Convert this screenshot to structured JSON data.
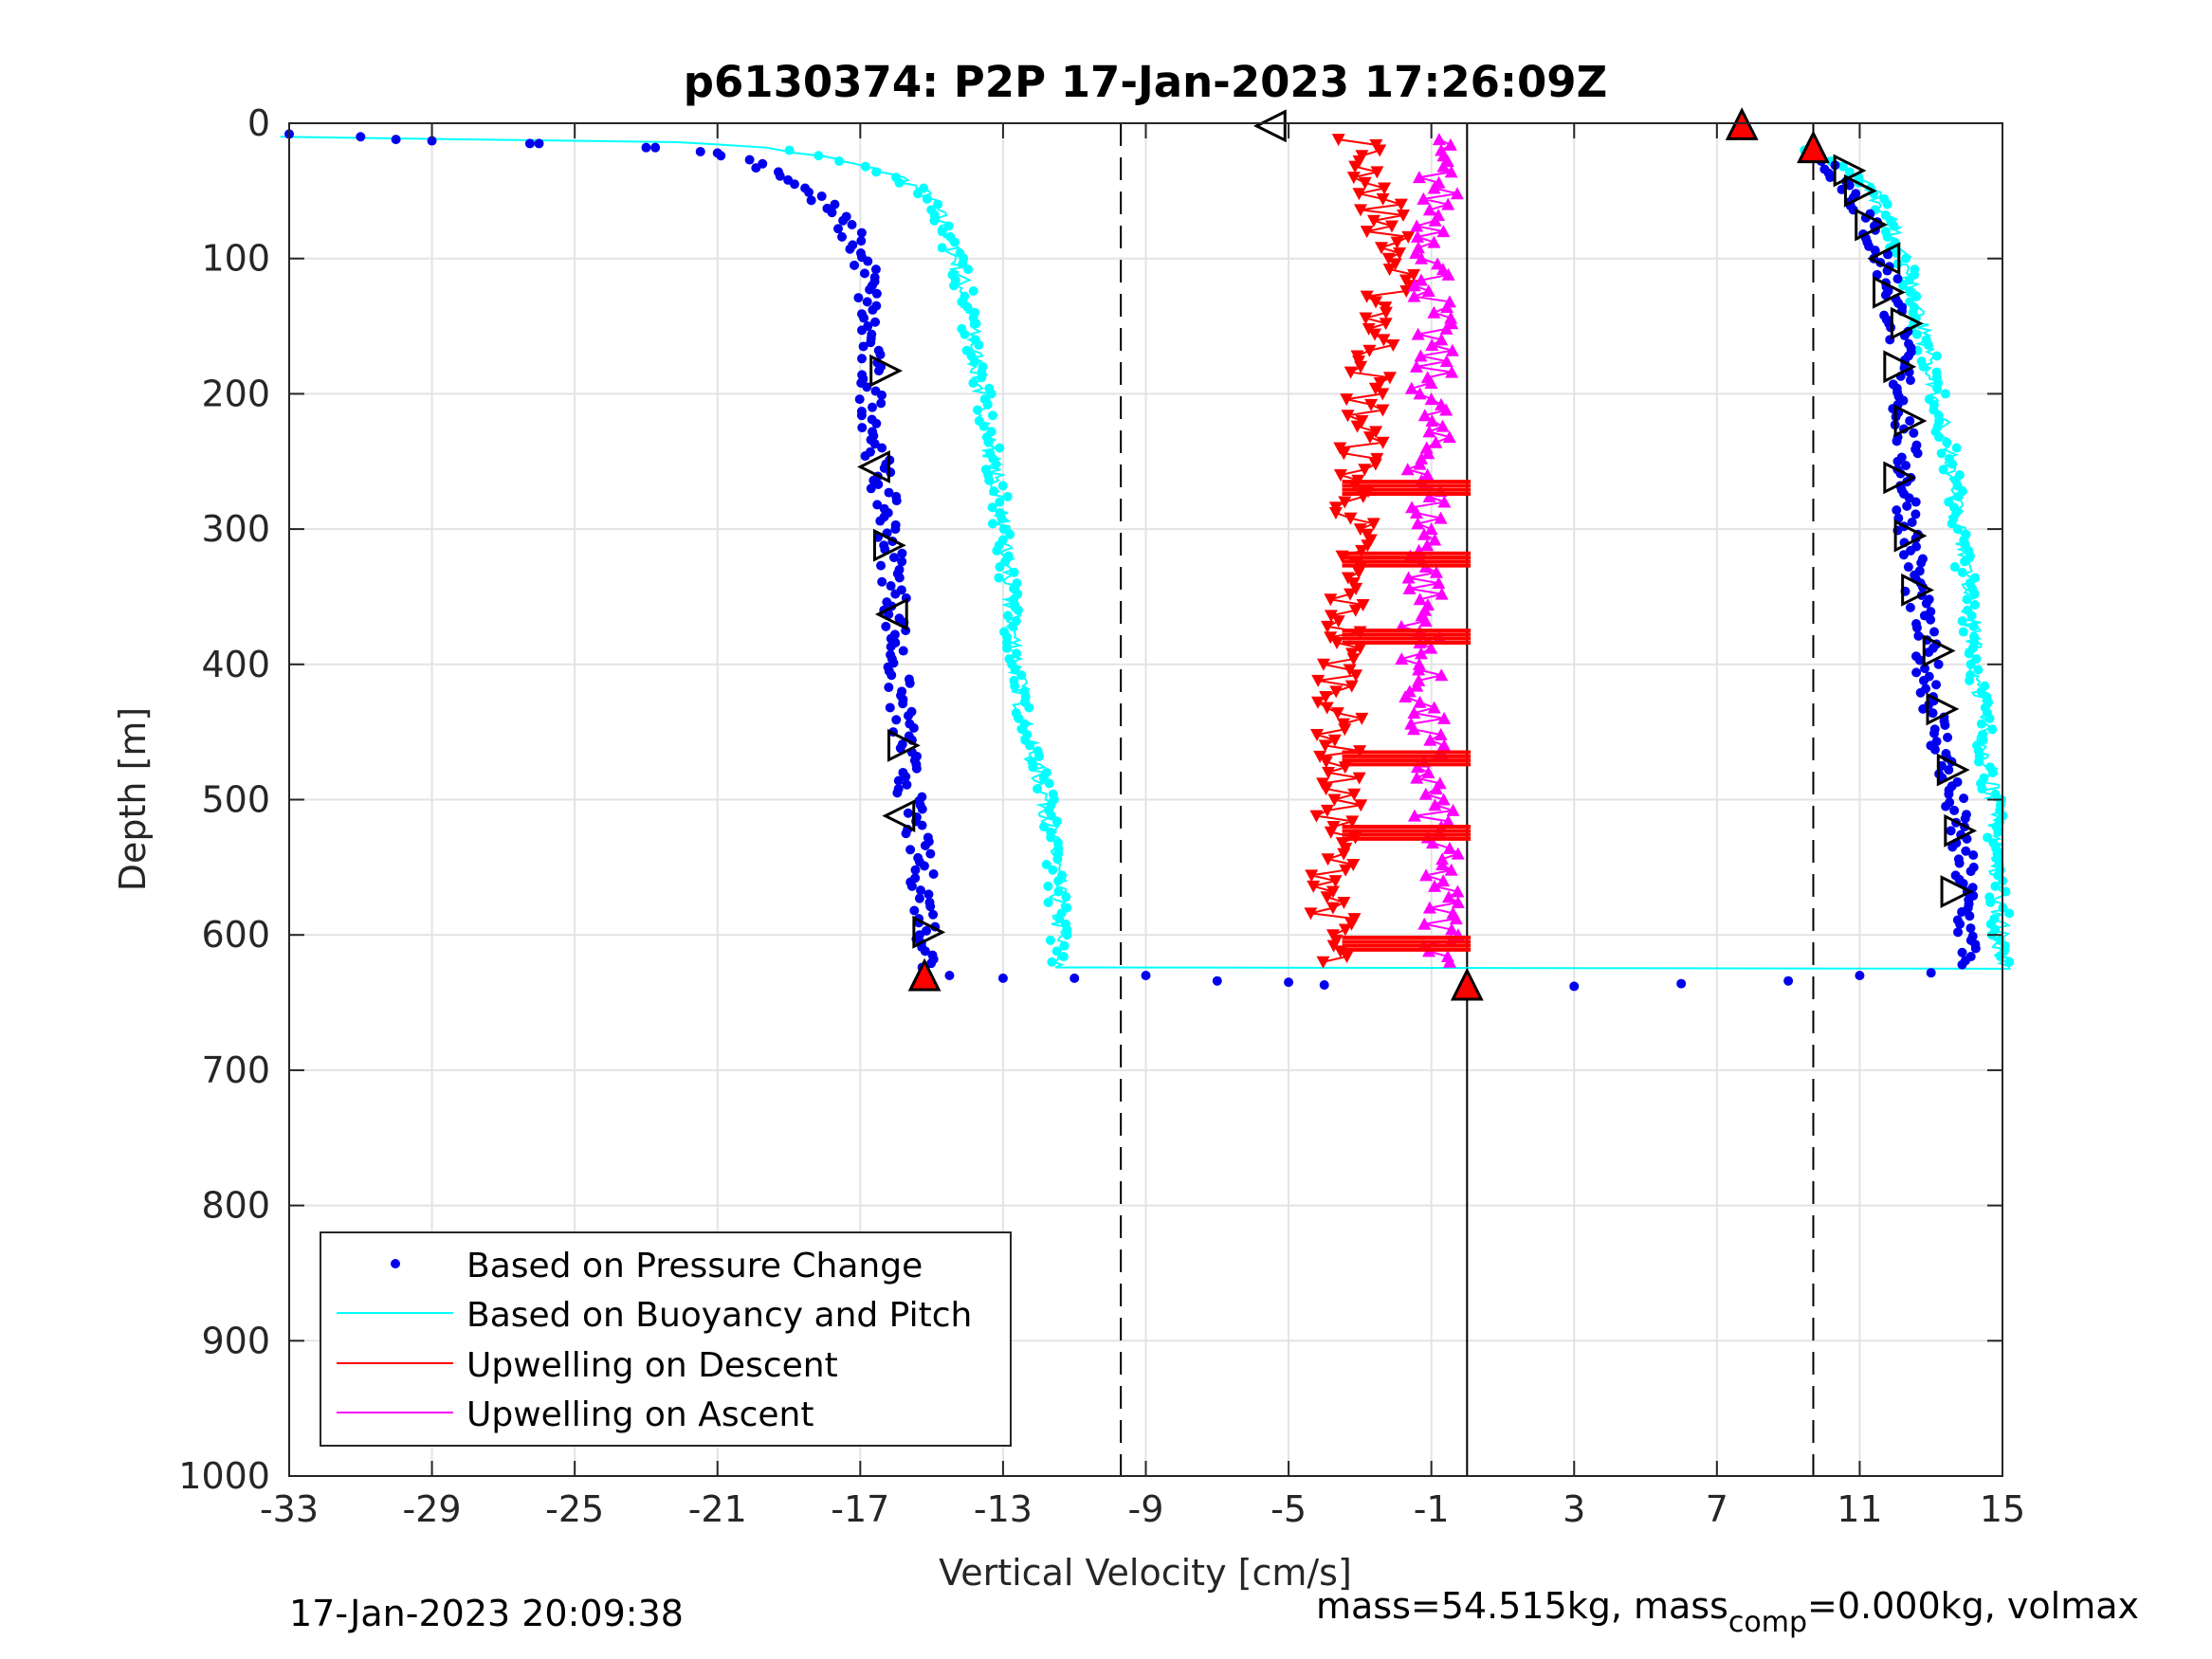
{
  "chart_data": {
    "type": "scatter",
    "title": "p6130374: P2P 17-Jan-2023 17:26:09Z",
    "xlabel": "Vertical Velocity [cm/s]",
    "ylabel": "Depth [m]",
    "xlim": [
      -33,
      15
    ],
    "ylim": [
      0,
      1000
    ],
    "y_reversed": true,
    "grid": true,
    "xticks": [
      -33,
      -29,
      -25,
      -21,
      -17,
      -13,
      -9,
      -5,
      -1,
      3,
      7,
      11,
      15
    ],
    "xtick_labels": [
      "-33",
      "-29",
      "-25",
      "-21",
      "-17",
      "-13",
      "-9",
      "-5",
      "-1",
      "3",
      "7",
      "11",
      "15"
    ],
    "yticks": [
      0,
      100,
      200,
      300,
      400,
      500,
      600,
      700,
      800,
      900,
      1000
    ],
    "ytick_labels": [
      "0",
      "100",
      "200",
      "300",
      "400",
      "500",
      "600",
      "700",
      "800",
      "900",
      "1000"
    ],
    "reference_lines": [
      {
        "x": -9.7,
        "style": "dashed"
      },
      {
        "x": 9.7,
        "style": "dashed"
      },
      {
        "x": 0,
        "style": "solid"
      }
    ],
    "legend": {
      "position": "bottom-left",
      "entries": [
        {
          "label": "Based on Pressure Change",
          "color": "#0000ee",
          "marker": "dot"
        },
        {
          "label": "Based on Buoyancy and Pitch",
          "color": "#00ffff",
          "marker": "line"
        },
        {
          "label": "Upwelling on Descent",
          "color": "#ff0000",
          "marker": "line"
        },
        {
          "label": "Upwelling on Ascent",
          "color": "#ff00ff",
          "marker": "line"
        }
      ]
    },
    "series": [
      {
        "key": "pressure_descent",
        "color": "#0000ee",
        "x": [
          -33,
          -31,
          -29,
          -26,
          -23,
          -21,
          -20,
          -19,
          -18,
          -17.3,
          -16.8,
          -16.8,
          -16.7,
          -16.5,
          -16.2,
          -16.0,
          -16.0,
          -15.8,
          -15.6,
          -15.3,
          -15.1,
          -15.1
        ],
        "y": [
          8,
          10,
          13,
          15,
          18,
          22,
          28,
          40,
          60,
          80,
          110,
          150,
          200,
          250,
          300,
          350,
          400,
          450,
          500,
          550,
          600,
          625
        ]
      },
      {
        "key": "pressure_ascent",
        "color": "#0000ee",
        "x": [
          10.0,
          10.5,
          11.0,
          11.3,
          11.6,
          11.9,
          12.1,
          12.2,
          12.3,
          12.4,
          12.6,
          12.9,
          13.2,
          13.6,
          13.9,
          14.0,
          14.1
        ],
        "y": [
          25,
          40,
          60,
          80,
          100,
          120,
          160,
          200,
          250,
          300,
          350,
          400,
          450,
          500,
          550,
          600,
          620
        ]
      },
      {
        "key": "buoyancy_descent",
        "color": "#00ffff",
        "x": [
          -33,
          -28,
          -24,
          -22,
          -20,
          -18,
          -16,
          -15,
          -14.6,
          -14.2,
          -13.9,
          -13.6,
          -13.3,
          -13.0,
          -12.8,
          -12.6,
          -12.4,
          -11.8,
          -11.5,
          -11.4
        ],
        "y": [
          10,
          12,
          13,
          14,
          17,
          25,
          38,
          55,
          80,
          110,
          150,
          200,
          250,
          300,
          350,
          400,
          450,
          500,
          550,
          625
        ]
      },
      {
        "key": "buoyancy_ascent",
        "color": "#00ffff",
        "x": [
          9.5,
          10.5,
          11.3,
          11.8,
          12.2,
          12.6,
          13.0,
          13.4,
          13.8,
          14.2,
          14.5,
          14.8,
          15.0
        ],
        "y": [
          20,
          30,
          45,
          70,
          100,
          140,
          180,
          230,
          300,
          380,
          450,
          520,
          620
        ]
      },
      {
        "key": "upwelling_descent",
        "color": "#ff0000",
        "x": [
          -3.0,
          -2.5,
          -2.0,
          -2.4,
          -2.8,
          -3.0,
          -3.2,
          -3.4,
          -3.5,
          -3.6,
          -3.6,
          -3.7,
          -3.8
        ],
        "y": [
          15,
          50,
          100,
          150,
          200,
          250,
          300,
          350,
          400,
          450,
          500,
          550,
          620
        ]
      },
      {
        "key": "upwelling_ascent",
        "color": "#ff00ff",
        "x": [
          -1.0,
          -0.8,
          -0.9,
          -1.0,
          -1.0,
          -1.1,
          -1.1,
          -1.2,
          -1.3,
          -1.2,
          -1.0,
          -0.8,
          -0.6
        ],
        "y": [
          15,
          50,
          100,
          150,
          200,
          250,
          300,
          350,
          400,
          450,
          500,
          550,
          620
        ]
      }
    ],
    "bottom_turn_points": {
      "color": "#0000ee",
      "x": [
        -14.5,
        -13,
        -11,
        -9,
        -7,
        -5,
        -4,
        0,
        3,
        6,
        9,
        11,
        13
      ],
      "y": [
        630,
        632,
        632,
        630,
        634,
        635,
        637,
        638,
        638,
        636,
        634,
        630,
        628
      ]
    },
    "triangle_markers": [
      {
        "x": -5.5,
        "y": 2,
        "dir": "left"
      },
      {
        "x": 7.7,
        "y": 1,
        "dir": "up",
        "fill": "#ff0000"
      },
      {
        "x": 9.7,
        "y": 18,
        "dir": "up",
        "fill": "#ff0000"
      },
      {
        "x": -15.2,
        "y": 630,
        "dir": "up",
        "fill": "#ff0000"
      },
      {
        "x": 0,
        "y": 637,
        "dir": "up",
        "fill": "#ff0000"
      },
      {
        "x": -16.3,
        "y": 183,
        "dir": "right"
      },
      {
        "x": -16.6,
        "y": 254,
        "dir": "left"
      },
      {
        "x": -16.2,
        "y": 312,
        "dir": "right"
      },
      {
        "x": -16.1,
        "y": 363,
        "dir": "left"
      },
      {
        "x": -15.8,
        "y": 460,
        "dir": "right"
      },
      {
        "x": -15.9,
        "y": 512,
        "dir": "left"
      },
      {
        "x": -15.1,
        "y": 598,
        "dir": "right"
      },
      {
        "x": 10.7,
        "y": 35,
        "dir": "right"
      },
      {
        "x": 11.0,
        "y": 50,
        "dir": "right"
      },
      {
        "x": 11.3,
        "y": 75,
        "dir": "right"
      },
      {
        "x": 11.7,
        "y": 100,
        "dir": "left"
      },
      {
        "x": 11.8,
        "y": 125,
        "dir": "right"
      },
      {
        "x": 12.3,
        "y": 148,
        "dir": "right"
      },
      {
        "x": 12.1,
        "y": 180,
        "dir": "right"
      },
      {
        "x": 12.4,
        "y": 220,
        "dir": "right"
      },
      {
        "x": 12.1,
        "y": 262,
        "dir": "right"
      },
      {
        "x": 12.4,
        "y": 305,
        "dir": "right"
      },
      {
        "x": 12.6,
        "y": 345,
        "dir": "right"
      },
      {
        "x": 13.2,
        "y": 390,
        "dir": "right"
      },
      {
        "x": 13.3,
        "y": 433,
        "dir": "right"
      },
      {
        "x": 13.6,
        "y": 478,
        "dir": "right"
      },
      {
        "x": 13.8,
        "y": 523,
        "dir": "right"
      },
      {
        "x": 13.7,
        "y": 568,
        "dir": "right"
      }
    ]
  },
  "footer": {
    "timestamp": "17-Jan-2023 20:09:38",
    "mass_text_a": "mass=54.515kg, mass",
    "mass_sub": "comp",
    "mass_text_b": "=0.000kg, volmax"
  }
}
